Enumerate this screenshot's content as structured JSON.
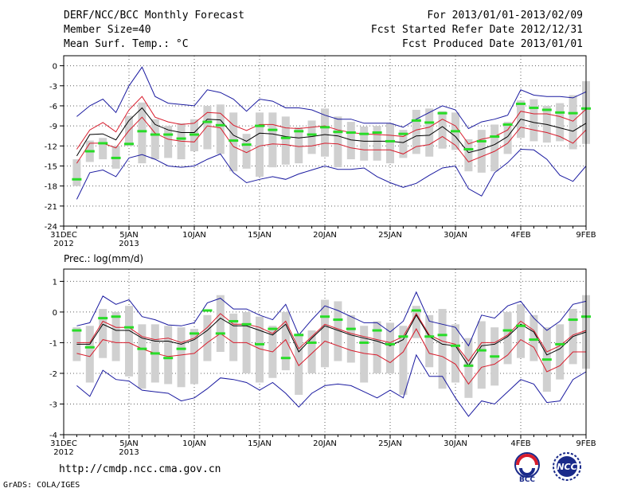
{
  "header": {
    "title": "DERF/NCC/BCC Monthly Forecast",
    "member_size": "Member Size=40",
    "variable": "Mean Surf. Temp.: °C",
    "forecast_period": "For 2013/01/01-2013/02/09",
    "started_refer_date": "Fcst Started Refer Date 2012/12/31",
    "produced_date": "Fcst Produced Date 2013/01/01"
  },
  "footer": {
    "url": "http://cmdp.ncc.cma.gov.cn",
    "credit": "GrADS: COLA/IGES",
    "logo_left": "BCC",
    "logo_right": "NCC"
  },
  "colors": {
    "envelope": "#1a1aa0",
    "ensemble_band": "#d81c2c",
    "ensemble_mean": "#000000",
    "observed": "#28dc28",
    "spread_box": "#d0d0d0",
    "grid": "#606060"
  },
  "chart_data": [
    {
      "type": "line",
      "name": "temperature",
      "ylabel": "",
      "ylim": [
        -24,
        1.5
      ],
      "yticks": [
        0,
        -3,
        -6,
        -9,
        -12,
        -15,
        -18,
        -21,
        -24
      ],
      "x_tick_days": [
        0,
        5,
        10,
        15,
        20,
        25,
        30,
        35,
        40
      ],
      "x_tick_labels": [
        "31DEC\n2012",
        "5JAN\n2013",
        "10JAN",
        "15JAN",
        "20JAN",
        "25JAN",
        "30JAN",
        "4FEB",
        "9FEB"
      ],
      "x_days": [
        1,
        2,
        3,
        4,
        5,
        6,
        7,
        8,
        9,
        10,
        11,
        12,
        13,
        14,
        15,
        16,
        17,
        18,
        19,
        20,
        21,
        22,
        23,
        24,
        25,
        26,
        27,
        28,
        29,
        30,
        31,
        32,
        33,
        34,
        35,
        36,
        37,
        38,
        39,
        40
      ],
      "series": [
        {
          "name": "envelope_max",
          "values": [
            -7.6,
            -6.0,
            -5.0,
            -7.0,
            -3.0,
            -0.2,
            -4.6,
            -5.6,
            -5.8,
            -6.0,
            -3.6,
            -4.0,
            -5.0,
            -6.8,
            -5.0,
            -5.3,
            -6.3,
            -6.3,
            -6.6,
            -7.4,
            -8.0,
            -8.0,
            -8.6,
            -8.6,
            -8.6,
            -9.2,
            -8.0,
            -7.0,
            -6.0,
            -6.6,
            -9.4,
            -8.4,
            -8.0,
            -7.4,
            -3.6,
            -4.4,
            -4.6,
            -4.6,
            -4.8,
            -3.9
          ]
        },
        {
          "name": "ensemble_upper",
          "values": [
            -12.5,
            -9.6,
            -8.5,
            -9.9,
            -6.6,
            -4.6,
            -7.7,
            -8.4,
            -8.8,
            -8.6,
            -7.0,
            -7.1,
            -8.9,
            -9.7,
            -8.8,
            -8.8,
            -9.3,
            -9.4,
            -9.2,
            -9.0,
            -9.6,
            -10.0,
            -10.2,
            -10.3,
            -10.4,
            -10.6,
            -9.6,
            -9.2,
            -8.0,
            -9.0,
            -11.7,
            -11.0,
            -10.6,
            -9.6,
            -6.8,
            -7.2,
            -7.2,
            -7.6,
            -8.3,
            -6.5
          ]
        },
        {
          "name": "ensemble_mean",
          "values": [
            -13.5,
            -10.3,
            -10.2,
            -11.1,
            -8.2,
            -6.3,
            -8.8,
            -9.6,
            -10.0,
            -10.0,
            -8.0,
            -8.1,
            -10.4,
            -11.3,
            -10.1,
            -10.2,
            -10.6,
            -10.8,
            -10.6,
            -10.3,
            -10.5,
            -11.1,
            -11.3,
            -11.3,
            -11.3,
            -11.5,
            -10.5,
            -10.4,
            -9.1,
            -10.6,
            -13.0,
            -12.5,
            -11.8,
            -10.6,
            -8.0,
            -8.5,
            -8.8,
            -9.3,
            -9.8,
            -8.6
          ]
        },
        {
          "name": "ensemble_lower",
          "values": [
            -14.6,
            -11.6,
            -11.6,
            -12.3,
            -9.7,
            -7.7,
            -10.1,
            -11.0,
            -11.3,
            -11.4,
            -9.0,
            -9.3,
            -12.1,
            -13.0,
            -12.0,
            -11.7,
            -11.8,
            -12.1,
            -12.0,
            -11.6,
            -11.7,
            -12.3,
            -12.6,
            -12.6,
            -12.6,
            -13.2,
            -12.1,
            -11.8,
            -10.6,
            -11.9,
            -14.4,
            -13.6,
            -12.8,
            -11.6,
            -9.2,
            -9.6,
            -10.0,
            -10.6,
            -11.6,
            -9.6
          ]
        },
        {
          "name": "envelope_min",
          "values": [
            -20.0,
            -16.0,
            -15.6,
            -16.6,
            -13.8,
            -13.3,
            -14.0,
            -15.0,
            -15.2,
            -15.0,
            -14.0,
            -13.2,
            -16.0,
            -17.5,
            -17.0,
            -16.6,
            -17.0,
            -16.2,
            -15.6,
            -15.0,
            -15.5,
            -15.5,
            -15.3,
            -16.6,
            -17.5,
            -18.2,
            -17.6,
            -16.4,
            -15.3,
            -15.0,
            -18.4,
            -19.5,
            -16.0,
            -14.5,
            -12.5,
            -12.6,
            -14.0,
            -16.4,
            -17.3,
            -15.0
          ]
        }
      ],
      "spread_boxes": {
        "upper": [
          -14.0,
          -11.2,
          -10.8,
          -12.0,
          -7.5,
          -5.5,
          -8.0,
          -9.0,
          -8.6,
          -8.0,
          -6.0,
          -5.8,
          -7.0,
          -10.2,
          -7.0,
          -7.0,
          -7.6,
          -9.2,
          -8.2,
          -6.4,
          -7.6,
          -8.4,
          -9.1,
          -9.0,
          -8.6,
          -9.6,
          -6.6,
          -6.4,
          -6.8,
          -7.0,
          -11.0,
          -9.6,
          -8.8,
          -8.4,
          -5.2,
          -5.0,
          -6.0,
          -5.6,
          -4.4,
          -2.3
        ],
        "lower": [
          -18.0,
          -14.4,
          -14.0,
          -15.4,
          -12.0,
          -14.6,
          -14.0,
          -13.8,
          -14.0,
          -12.8,
          -12.5,
          -13.2,
          -15.8,
          -15.4,
          -16.6,
          -15.2,
          -14.8,
          -14.6,
          -13.2,
          -13.6,
          -15.2,
          -14.0,
          -14.2,
          -14.2,
          -14.6,
          -13.8,
          -13.2,
          -13.6,
          -12.4,
          -12.6,
          -15.8,
          -16.0,
          -15.8,
          -13.2,
          -10.8,
          -11.3,
          -11.5,
          -11.3,
          -12.5,
          -11.7
        ]
      },
      "observed": [
        -17.0,
        -12.8,
        -11.6,
        -13.8,
        -11.7,
        -9.8,
        -10.3,
        -10.3,
        -10.9,
        -10.3,
        -8.4,
        -8.9,
        -11.2,
        -11.8,
        -9.0,
        -9.6,
        -10.8,
        -9.8,
        -10.3,
        -9.2,
        -9.9,
        -10.0,
        -10.2,
        -10.0,
        -11.3,
        -10.2,
        -8.2,
        -8.5,
        -7.1,
        -9.8,
        -12.5,
        -11.3,
        -10.6,
        -8.8,
        -5.7,
        -6.3,
        -6.6,
        -7.0,
        -7.1,
        -6.4
      ]
    },
    {
      "type": "line",
      "name": "precipitation",
      "ylabel": "Prec.: log(mm/d)",
      "ylim": [
        -4,
        1.4
      ],
      "yticks": [
        1,
        0,
        -1,
        -2,
        -3,
        -4
      ],
      "x_tick_days": [
        0,
        5,
        10,
        15,
        20,
        25,
        30,
        35,
        40
      ],
      "x_tick_labels": [
        "31DEC\n2012",
        "5JAN\n2013",
        "10JAN",
        "15JAN",
        "20JAN",
        "25JAN",
        "30JAN",
        "4FEB",
        "9FEB"
      ],
      "x_days": [
        1,
        2,
        3,
        4,
        5,
        6,
        7,
        8,
        9,
        10,
        11,
        12,
        13,
        14,
        15,
        16,
        17,
        18,
        19,
        20,
        21,
        22,
        23,
        24,
        25,
        26,
        27,
        28,
        29,
        30,
        31,
        32,
        33,
        34,
        35,
        36,
        37,
        38,
        39,
        40
      ],
      "series": [
        {
          "name": "envelope_max",
          "values": [
            -0.45,
            -0.35,
            0.52,
            0.25,
            0.4,
            -0.15,
            -0.25,
            -0.42,
            -0.45,
            -0.35,
            0.3,
            0.45,
            0.1,
            0.1,
            -0.1,
            -0.25,
            0.25,
            -0.75,
            -0.25,
            0.2,
            0.05,
            -0.15,
            -0.35,
            -0.35,
            -0.65,
            -0.3,
            0.65,
            -0.3,
            -0.4,
            -0.5,
            -1.1,
            -0.1,
            -0.2,
            0.2,
            0.35,
            -0.2,
            -0.6,
            -0.3,
            0.25,
            0.35
          ]
        },
        {
          "name": "ensemble_upper",
          "values": [
            -1.0,
            -1.0,
            -0.3,
            -0.5,
            -0.5,
            -0.8,
            -0.9,
            -0.85,
            -1.0,
            -0.85,
            -0.5,
            -0.05,
            -0.4,
            -0.4,
            -0.5,
            -0.7,
            -0.3,
            -1.2,
            -0.8,
            -0.4,
            -0.55,
            -0.7,
            -0.8,
            -0.9,
            -1.0,
            -0.8,
            -0.05,
            -0.75,
            -0.95,
            -1.05,
            -1.6,
            -1.0,
            -1.0,
            -0.75,
            -0.3,
            -0.6,
            -1.3,
            -1.1,
            -0.75,
            -0.6
          ]
        },
        {
          "name": "ensemble_mean",
          "values": [
            -1.05,
            -1.05,
            -0.4,
            -0.6,
            -0.6,
            -0.85,
            -0.95,
            -0.95,
            -1.05,
            -0.9,
            -0.6,
            -0.2,
            -0.45,
            -0.45,
            -0.6,
            -0.75,
            -0.4,
            -1.3,
            -0.85,
            -0.45,
            -0.6,
            -0.75,
            -0.85,
            -0.95,
            -1.1,
            -0.9,
            -0.1,
            -0.8,
            -1.05,
            -1.1,
            -1.75,
            -1.1,
            -1.05,
            -0.8,
            -0.4,
            -0.65,
            -1.4,
            -1.2,
            -0.8,
            -0.65
          ]
        },
        {
          "name": "ensemble_lower",
          "values": [
            -1.35,
            -1.45,
            -0.9,
            -1.0,
            -1.0,
            -1.2,
            -1.35,
            -1.45,
            -1.4,
            -1.35,
            -1.0,
            -0.7,
            -1.0,
            -1.0,
            -1.2,
            -1.3,
            -0.9,
            -1.75,
            -1.35,
            -0.95,
            -1.1,
            -1.25,
            -1.35,
            -1.4,
            -1.65,
            -1.3,
            -0.55,
            -1.35,
            -1.45,
            -1.7,
            -2.35,
            -1.8,
            -1.7,
            -1.4,
            -0.9,
            -1.15,
            -1.95,
            -1.75,
            -1.3,
            -1.3
          ]
        },
        {
          "name": "envelope_min",
          "values": [
            -2.4,
            -2.75,
            -1.9,
            -2.2,
            -2.25,
            -2.55,
            -2.6,
            -2.65,
            -2.9,
            -2.8,
            -2.5,
            -2.15,
            -2.2,
            -2.3,
            -2.55,
            -2.3,
            -2.65,
            -3.1,
            -2.65,
            -2.4,
            -2.35,
            -2.4,
            -2.6,
            -2.8,
            -2.55,
            -2.8,
            -1.4,
            -2.1,
            -2.1,
            -2.8,
            -3.4,
            -2.9,
            -3.0,
            -2.6,
            -2.2,
            -2.35,
            -2.95,
            -2.9,
            -2.2,
            -1.95
          ]
        }
      ],
      "spread_boxes": {
        "upper": [
          -0.5,
          -0.45,
          0.1,
          0.0,
          0.2,
          -0.4,
          -0.4,
          -0.45,
          -0.5,
          -0.55,
          -0.1,
          0.55,
          -0.05,
          0.0,
          -0.15,
          -0.45,
          0.0,
          -0.7,
          -0.6,
          0.4,
          0.35,
          -0.1,
          -0.45,
          -0.3,
          -0.35,
          -0.45,
          0.2,
          -0.1,
          0.1,
          -0.4,
          -0.85,
          -0.3,
          -0.5,
          0.0,
          0.25,
          -0.1,
          -0.5,
          -0.4,
          0.1,
          0.55
        ],
        "lower": [
          -1.6,
          -2.3,
          -1.5,
          -1.6,
          -2.1,
          -2.5,
          -2.3,
          -2.35,
          -2.45,
          -2.35,
          -1.6,
          -1.3,
          -1.6,
          -2.0,
          -2.3,
          -2.15,
          -1.9,
          -2.7,
          -2.0,
          -1.8,
          -1.6,
          -1.65,
          -2.3,
          -2.0,
          -2.0,
          -2.7,
          -0.85,
          -1.8,
          -2.5,
          -2.3,
          -2.8,
          -2.5,
          -2.4,
          -1.7,
          -1.5,
          -1.6,
          -2.6,
          -2.2,
          -1.7,
          -1.85
        ]
      },
      "observed": [
        -0.6,
        -1.15,
        -0.2,
        -0.15,
        -0.5,
        -1.2,
        -1.35,
        -1.5,
        -1.2,
        -0.7,
        0.05,
        -0.7,
        -0.3,
        -0.4,
        -1.05,
        -0.55,
        -1.5,
        -0.75,
        -1.0,
        -0.15,
        -0.25,
        -0.55,
        -1.0,
        -0.6,
        -1.05,
        -0.8,
        0.05,
        -0.8,
        -0.75,
        -1.1,
        -1.75,
        -1.25,
        -1.45,
        -0.6,
        -0.45,
        -0.9,
        -1.55,
        -1.05,
        -0.25,
        -0.15
      ]
    }
  ]
}
